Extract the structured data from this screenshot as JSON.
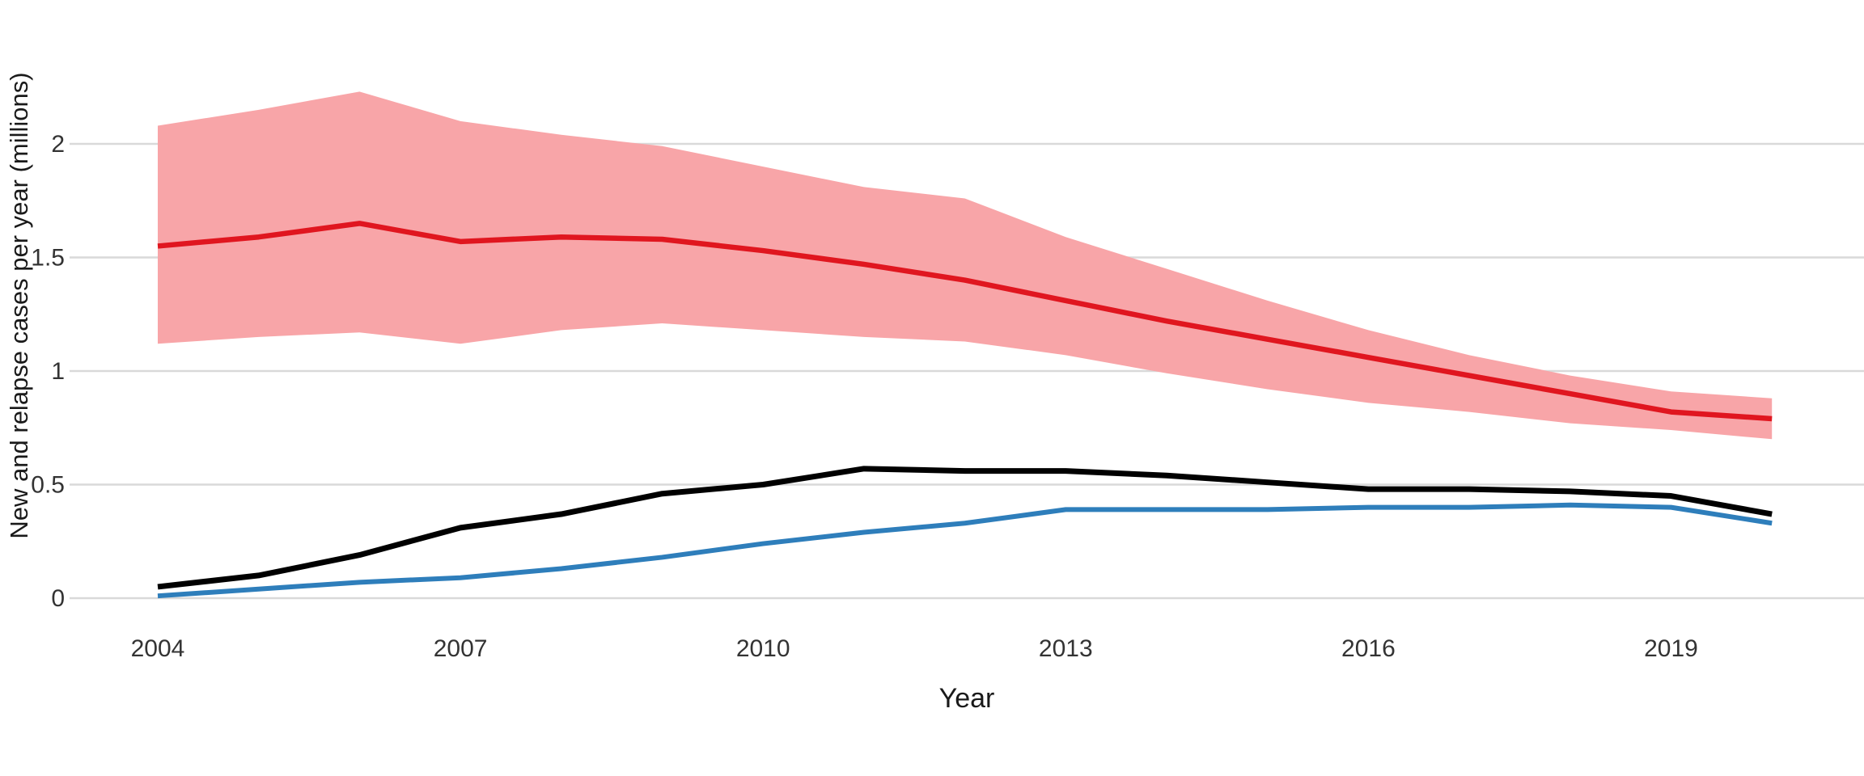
{
  "chart_data": {
    "type": "line",
    "title": "",
    "xlabel": "Year",
    "ylabel": "New and relapse cases per year (millions)",
    "x": [
      2004,
      2005,
      2006,
      2007,
      2008,
      2009,
      2010,
      2011,
      2012,
      2013,
      2014,
      2015,
      2016,
      2017,
      2018,
      2019,
      2020
    ],
    "x_tick_labels": [
      "2004",
      "2007",
      "2010",
      "2013",
      "2016",
      "2019"
    ],
    "x_tick_years": [
      2004,
      2007,
      2010,
      2013,
      2016,
      2019
    ],
    "y_tick_labels": [
      "0",
      "0.5",
      "1",
      "1.5",
      "2"
    ],
    "y_tick_values": [
      0,
      0.5,
      1,
      1.5,
      2
    ],
    "ylim": [
      0,
      2.4
    ],
    "xlim": [
      2004,
      2020
    ],
    "grid": "horizontal-only",
    "legend": "none",
    "series": [
      {
        "name": "red-line-with-uncertainty-band",
        "color": "#E0161F",
        "values": [
          1.55,
          1.59,
          1.65,
          1.57,
          1.59,
          1.58,
          1.53,
          1.47,
          1.4,
          1.31,
          1.22,
          1.14,
          1.06,
          0.98,
          0.9,
          0.82,
          0.79
        ],
        "band_upper": [
          2.08,
          2.15,
          2.23,
          2.1,
          2.04,
          1.99,
          1.9,
          1.81,
          1.76,
          1.59,
          1.45,
          1.31,
          1.18,
          1.07,
          0.98,
          0.91,
          0.88
        ],
        "band_lower": [
          1.12,
          1.15,
          1.17,
          1.12,
          1.18,
          1.21,
          1.18,
          1.15,
          1.13,
          1.07,
          0.99,
          0.92,
          0.86,
          0.82,
          0.77,
          0.74,
          0.7
        ],
        "band_color": "#F8A5A8"
      },
      {
        "name": "black-line",
        "color": "#000000",
        "values": [
          0.05,
          0.1,
          0.19,
          0.31,
          0.37,
          0.46,
          0.5,
          0.57,
          0.56,
          0.56,
          0.54,
          0.51,
          0.48,
          0.48,
          0.47,
          0.45,
          0.37
        ]
      },
      {
        "name": "blue-line",
        "color": "#2E7EBB",
        "values": [
          0.01,
          0.04,
          0.07,
          0.09,
          0.13,
          0.18,
          0.24,
          0.29,
          0.33,
          0.39,
          0.39,
          0.39,
          0.4,
          0.4,
          0.41,
          0.4,
          0.33
        ]
      }
    ],
    "colors": {
      "grid": "#D9D9D9",
      "background": "#FFFFFF",
      "tick_text": "#333333",
      "axis_title_text": "#1A1A1A"
    }
  }
}
